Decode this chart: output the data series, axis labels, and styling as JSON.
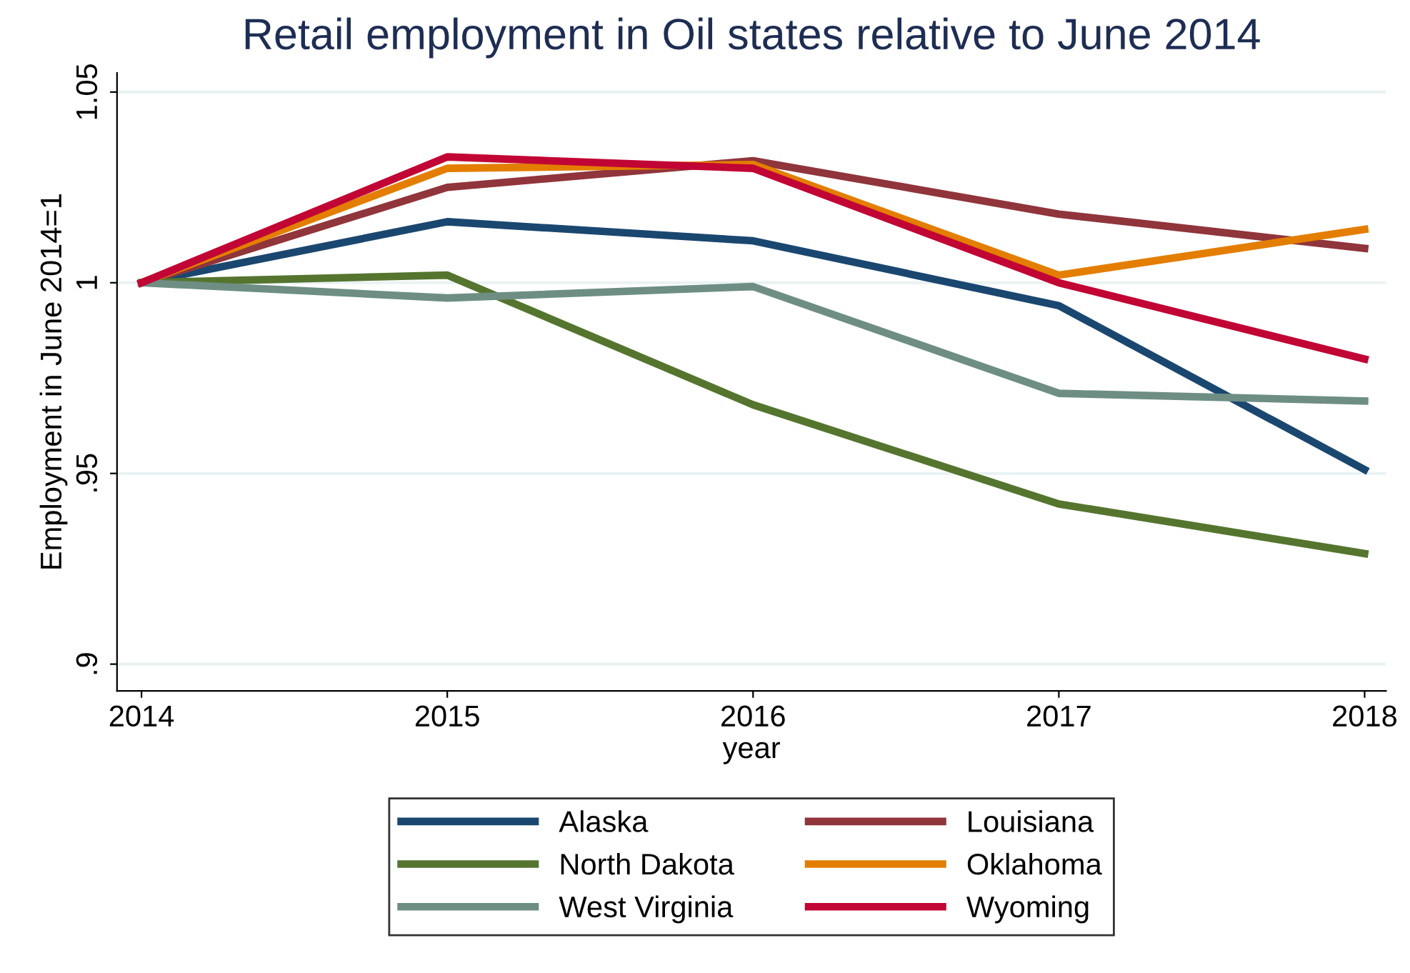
{
  "chart_data": {
    "type": "line",
    "title": "Retail employment in Oil states relative to June 2014",
    "xlabel": "year",
    "ylabel": "Employment in June 2014=1",
    "x": [
      2014,
      2015,
      2016,
      2017,
      2018
    ],
    "series": [
      {
        "name": "Alaska",
        "color": "#1a476f",
        "values": [
          1.0,
          1.016,
          1.011,
          0.994,
          0.951
        ]
      },
      {
        "name": "Louisiana",
        "color": "#90353b",
        "values": [
          1.0,
          1.025,
          1.032,
          1.018,
          1.009
        ]
      },
      {
        "name": "North Dakota",
        "color": "#55752f",
        "values": [
          1.0,
          1.002,
          0.968,
          0.942,
          0.929
        ]
      },
      {
        "name": "Oklahoma",
        "color": "#e37e00",
        "values": [
          1.0,
          1.03,
          1.031,
          1.002,
          1.014
        ]
      },
      {
        "name": "West Virginia",
        "color": "#6e8e84",
        "values": [
          1.0,
          0.996,
          0.999,
          0.971,
          0.969
        ]
      },
      {
        "name": "Wyoming",
        "color": "#c10534",
        "values": [
          1.0,
          1.033,
          1.03,
          1.0,
          0.98
        ]
      }
    ],
    "xlim": [
      2013.92,
      2018.07
    ],
    "ylim": [
      0.893,
      1.055
    ],
    "xticks": [
      2014,
      2015,
      2016,
      2017,
      2018
    ],
    "yticks": [
      {
        "value": 0.9,
        "label": ".9"
      },
      {
        "value": 0.95,
        "label": ".95"
      },
      1,
      1.05
    ],
    "grid": "y",
    "legend": "bottom",
    "marker": "none",
    "line_style": "solid"
  }
}
